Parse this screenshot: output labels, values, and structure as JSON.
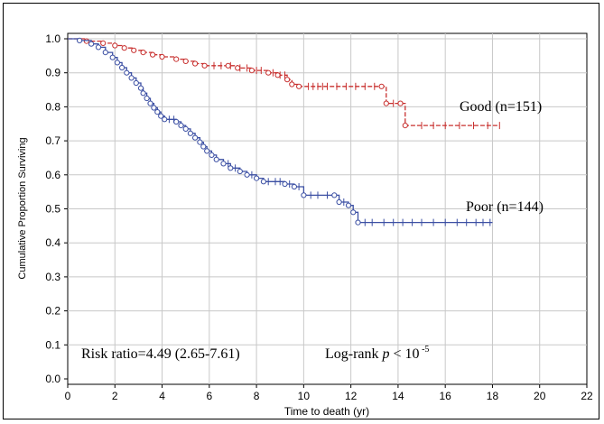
{
  "chart_data": {
    "type": "line",
    "title": "",
    "xlabel": "Time to death (yr)",
    "ylabel": "Cumulative Proportion Surviving",
    "xlim": [
      0,
      22
    ],
    "ylim": [
      0,
      1.0
    ],
    "x_ticks": [
      "0",
      "2",
      "4",
      "6",
      "8",
      "10",
      "12",
      "14",
      "16",
      "18",
      "20",
      "22"
    ],
    "y_ticks": [
      "0.0",
      "0.1",
      "0.2",
      "0.3",
      "0.4",
      "0.5",
      "0.6",
      "0.7",
      "0.8",
      "0.9",
      "1.0"
    ],
    "grid": true,
    "step": true,
    "series": [
      {
        "name": "Good (n=151)",
        "color": "#c8302f",
        "line_style": "dashed",
        "points": [
          [
            0,
            1.0
          ],
          [
            0.8,
            0.993
          ],
          [
            1.5,
            0.987
          ],
          [
            2.0,
            0.98
          ],
          [
            2.4,
            0.973
          ],
          [
            2.8,
            0.966
          ],
          [
            3.2,
            0.96
          ],
          [
            3.6,
            0.953
          ],
          [
            4.0,
            0.947
          ],
          [
            4.6,
            0.94
          ],
          [
            5.0,
            0.934
          ],
          [
            5.4,
            0.927
          ],
          [
            5.8,
            0.921
          ],
          [
            6.8,
            0.921
          ],
          [
            7.2,
            0.914
          ],
          [
            7.8,
            0.907
          ],
          [
            8.5,
            0.9
          ],
          [
            8.9,
            0.893
          ],
          [
            9.3,
            0.88
          ],
          [
            9.5,
            0.866
          ],
          [
            9.8,
            0.86
          ],
          [
            13.3,
            0.86
          ],
          [
            13.5,
            0.81
          ],
          [
            14.1,
            0.81
          ],
          [
            14.3,
            0.745
          ],
          [
            18.3,
            0.745
          ]
        ],
        "censored": [
          6.2,
          6.5,
          6.9,
          7.3,
          7.6,
          8.0,
          8.2,
          8.7,
          9.0,
          9.2,
          10.2,
          10.4,
          10.6,
          10.8,
          11.0,
          11.4,
          11.8,
          12.2,
          12.6,
          13.0,
          13.8,
          15.0,
          15.5,
          16.0,
          16.6,
          17.2,
          17.8,
          18.3
        ],
        "label": "Good (n=151)"
      },
      {
        "name": "Poor (n=144)",
        "color": "#3b4fa3",
        "line_style": "solid",
        "points": [
          [
            0,
            1.0
          ],
          [
            0.5,
            0.995
          ],
          [
            1.0,
            0.985
          ],
          [
            1.3,
            0.975
          ],
          [
            1.6,
            0.96
          ],
          [
            1.9,
            0.945
          ],
          [
            2.1,
            0.93
          ],
          [
            2.3,
            0.915
          ],
          [
            2.5,
            0.9
          ],
          [
            2.7,
            0.885
          ],
          [
            2.9,
            0.87
          ],
          [
            3.1,
            0.855
          ],
          [
            3.2,
            0.84
          ],
          [
            3.35,
            0.825
          ],
          [
            3.5,
            0.81
          ],
          [
            3.65,
            0.797
          ],
          [
            3.8,
            0.785
          ],
          [
            3.95,
            0.773
          ],
          [
            4.1,
            0.763
          ],
          [
            4.6,
            0.756
          ],
          [
            4.8,
            0.745
          ],
          [
            5.0,
            0.735
          ],
          [
            5.2,
            0.722
          ],
          [
            5.4,
            0.709
          ],
          [
            5.6,
            0.696
          ],
          [
            5.75,
            0.683
          ],
          [
            5.9,
            0.67
          ],
          [
            6.1,
            0.658
          ],
          [
            6.3,
            0.645
          ],
          [
            6.6,
            0.633
          ],
          [
            6.9,
            0.62
          ],
          [
            7.3,
            0.61
          ],
          [
            7.6,
            0.6
          ],
          [
            8.0,
            0.59
          ],
          [
            8.3,
            0.58
          ],
          [
            9.2,
            0.573
          ],
          [
            9.6,
            0.565
          ],
          [
            10.0,
            0.54
          ],
          [
            11.3,
            0.54
          ],
          [
            11.5,
            0.52
          ],
          [
            11.9,
            0.51
          ],
          [
            12.1,
            0.49
          ],
          [
            12.3,
            0.46
          ],
          [
            18.0,
            0.46
          ]
        ],
        "censored": [
          4.3,
          4.5,
          6.8,
          7.1,
          7.8,
          8.5,
          8.8,
          9.0,
          9.4,
          9.8,
          10.3,
          10.6,
          11.0,
          11.7,
          12.6,
          12.9,
          13.4,
          13.8,
          14.2,
          14.6,
          15.0,
          15.5,
          16.0,
          16.5,
          16.9,
          17.3,
          17.6,
          17.9
        ],
        "label": "Poor (n=144)"
      }
    ],
    "annotations": [
      {
        "text_main": "Risk ratio=4.49 (2.65-7.61)"
      },
      {
        "text_main": "Log-rank ",
        "text_italic": "p",
        "text_after": " < 10",
        "text_sup": " -5"
      }
    ]
  }
}
